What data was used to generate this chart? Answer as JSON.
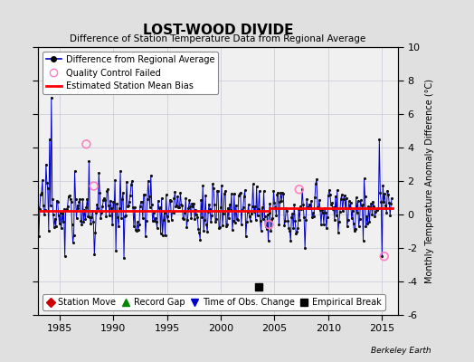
{
  "title": "LOST-WOOD DIVIDE",
  "subtitle": "Difference of Station Temperature Data from Regional Average",
  "ylabel": "Monthly Temperature Anomaly Difference (°C)",
  "xlabel_bottom": "Berkeley Earth",
  "ylim": [
    -6,
    10
  ],
  "xlim": [
    1983.0,
    2016.5
  ],
  "yticks": [
    -6,
    -4,
    -2,
    0,
    2,
    4,
    6,
    8,
    10
  ],
  "xticks": [
    1985,
    1990,
    1995,
    2000,
    2005,
    2010,
    2015
  ],
  "mean_bias_early": 0.2,
  "mean_bias_late": 0.4,
  "bias_change_year": 2004.5,
  "background_color": "#e0e0e0",
  "plot_background": "#f0f0f0",
  "grid_color": "#c8c8d8",
  "line_color": "#0000cc",
  "marker_color": "#111111",
  "bias_line_color": "#ff0000",
  "seed": 17,
  "empirical_break_x": 2003.5,
  "empirical_break_y": -4.3,
  "tobs_x": 1983.5,
  "qc_failed_x": [
    1987.5,
    1988.2,
    2004.5,
    2007.3,
    2015.2
  ],
  "qc_failed_y": [
    4.2,
    1.7,
    -0.6,
    1.5,
    -2.5
  ]
}
